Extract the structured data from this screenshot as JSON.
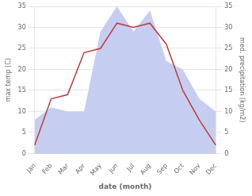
{
  "chart_data": {
    "type": "line",
    "categories": [
      "Jan",
      "Feb",
      "Mar",
      "Apr",
      "May",
      "Jun",
      "Jul",
      "Aug",
      "Sep",
      "Oct",
      "Nov",
      "Dec"
    ],
    "xlabel": "date (month)",
    "ylabel": "max temp (C)",
    "y2label": "med. precipitation (kg/m2)",
    "series": [
      {
        "type": "area",
        "axis": "y2",
        "color": "#c5cef0",
        "values": [
          8,
          11,
          10,
          10,
          29,
          35,
          29,
          34,
          22,
          20,
          13,
          10
        ]
      },
      {
        "type": "line",
        "color": "#c0393b",
        "values": [
          2,
          13,
          14,
          24,
          25,
          31,
          30,
          31,
          26,
          15,
          8,
          2
        ]
      }
    ],
    "ylim": [
      0,
      35
    ],
    "yticks": [
      0,
      5,
      10,
      15,
      20,
      25,
      30,
      35
    ],
    "y2lim": [
      0,
      35
    ],
    "y2ticks": [
      0,
      5,
      10,
      15,
      20,
      25,
      30,
      35
    ],
    "grid": true
  }
}
